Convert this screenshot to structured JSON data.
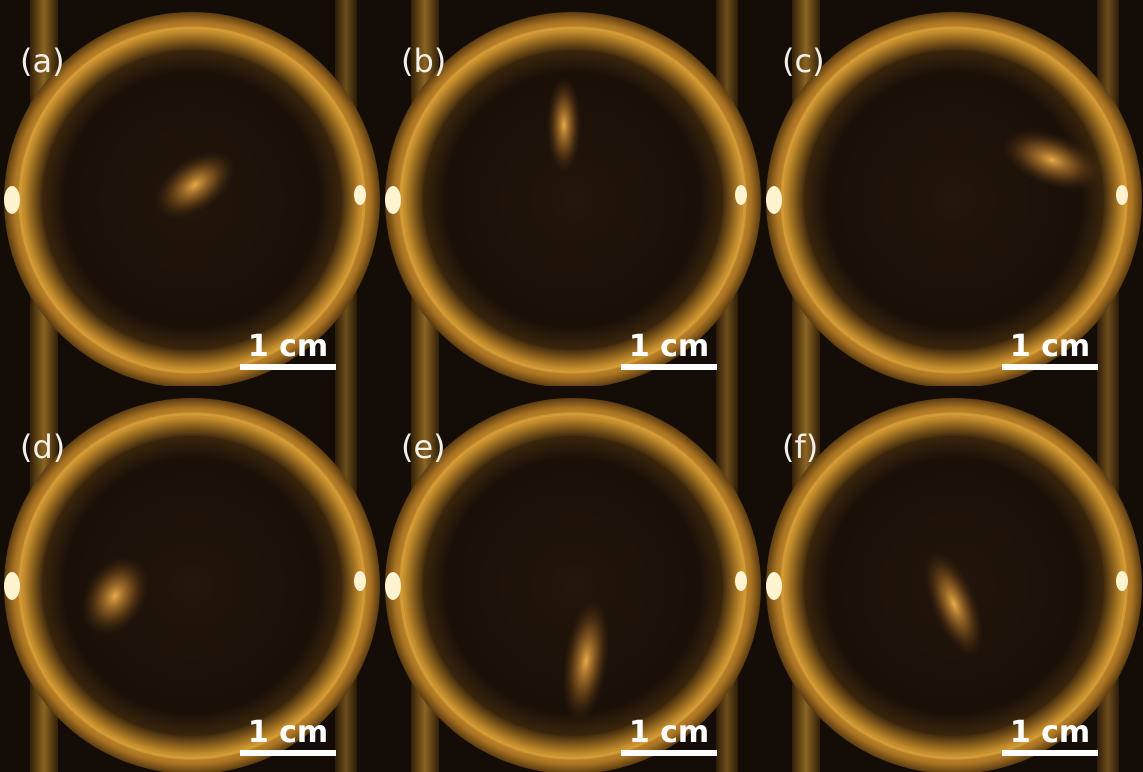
{
  "panels": [
    {
      "label": "(a)",
      "scale_bar": "1 cm"
    },
    {
      "label": "(b)",
      "scale_bar": "1 cm"
    },
    {
      "label": "(c)",
      "scale_bar": "1 cm"
    },
    {
      "label": "(d)",
      "scale_bar": "1 cm"
    },
    {
      "label": "(e)",
      "scale_bar": "1 cm"
    },
    {
      "label": "(f)",
      "scale_bar": "1 cm"
    }
  ]
}
